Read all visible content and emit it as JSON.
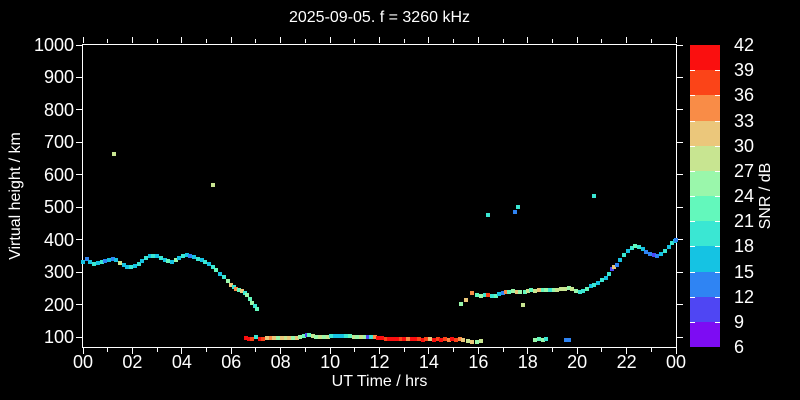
{
  "chart_data": {
    "type": "scatter",
    "title": "2025-09-05. f = 3260 kHz",
    "xlabel": "UT Time / hrs",
    "ylabel": "Virtual height / km",
    "xlim_hrs": [
      0,
      24
    ],
    "ylim_km": [
      70,
      1000
    ],
    "x_major_ticks_hrs": [
      0,
      2,
      4,
      6,
      8,
      10,
      12,
      14,
      16,
      18,
      20,
      22,
      24
    ],
    "x_tick_labels": [
      "00",
      "02",
      "04",
      "06",
      "08",
      "10",
      "12",
      "14",
      "16",
      "18",
      "20",
      "22",
      "00"
    ],
    "x_minor_ticks_hrs": [
      1,
      3,
      5,
      7,
      9,
      11,
      13,
      15,
      17,
      19,
      21,
      23
    ],
    "y_major_ticks_km": [
      100,
      200,
      300,
      400,
      500,
      600,
      700,
      800,
      900,
      1000
    ],
    "grid": false,
    "background_color": "#000000",
    "axis_color": "#ffffff",
    "colorbar": {
      "label": "SNR / dB",
      "tick_labels": [
        "42",
        "39",
        "36",
        "33",
        "30",
        "27",
        "24",
        "21",
        "18",
        "15",
        "12",
        "9",
        "6"
      ],
      "cells_top_to_bottom": [
        "#fa0f0f",
        "#fb4418",
        "#f98c47",
        "#ebc77b",
        "#c8e591",
        "#9af7ab",
        "#63f8bc",
        "#3ae7d3",
        "#15c3e3",
        "#2f84f3",
        "#4f46f3",
        "#7d0cf3"
      ],
      "cell_ranges_dB": [
        "39-42",
        "36-39",
        "33-36",
        "30-33",
        "27-30",
        "24-27",
        "21-24",
        "18-21",
        "15-18",
        "12-15",
        "9-12",
        "6-9"
      ]
    },
    "snr_color_by_band_dB": {
      "39": "#fa0f0f",
      "36": "#fb4418",
      "33": "#f98c47",
      "30": "#ebc77b",
      "27": "#c8e591",
      "24": "#9af7ab",
      "21": "#63f8bc",
      "18": "#3ae7d3",
      "15": "#15c3e3",
      "12": "#2f84f3",
      "9": "#4f46f3",
      "6": "#7d0cf3"
    },
    "points_time_height_snr": [
      [
        0.0,
        332,
        15
      ],
      [
        0.15,
        340,
        12
      ],
      [
        0.3,
        331,
        15
      ],
      [
        0.45,
        327,
        18
      ],
      [
        0.6,
        329,
        15
      ],
      [
        0.75,
        331,
        18
      ],
      [
        0.9,
        334,
        12
      ],
      [
        1.05,
        338,
        15
      ],
      [
        1.2,
        341,
        12
      ],
      [
        1.35,
        337,
        15
      ],
      [
        1.5,
        330,
        27
      ],
      [
        1.65,
        322,
        15
      ],
      [
        1.8,
        317,
        15
      ],
      [
        1.95,
        315,
        18
      ],
      [
        2.1,
        319,
        15
      ],
      [
        2.25,
        326,
        18
      ],
      [
        2.4,
        334,
        15
      ],
      [
        2.55,
        343,
        18
      ],
      [
        2.7,
        349,
        15
      ],
      [
        2.85,
        351,
        18
      ],
      [
        3.0,
        349,
        15
      ],
      [
        3.15,
        344,
        18
      ],
      [
        3.3,
        339,
        15
      ],
      [
        3.45,
        335,
        21
      ],
      [
        3.6,
        331,
        15
      ],
      [
        3.75,
        337,
        24
      ],
      [
        3.9,
        344,
        15
      ],
      [
        4.05,
        350,
        18
      ],
      [
        4.2,
        353,
        15
      ],
      [
        4.35,
        351,
        12
      ],
      [
        4.5,
        346,
        15
      ],
      [
        4.65,
        341,
        18
      ],
      [
        4.8,
        338,
        15
      ],
      [
        1.25,
        665,
        27
      ],
      [
        5.25,
        570,
        27
      ],
      [
        4.95,
        333,
        18
      ],
      [
        5.1,
        326,
        15
      ],
      [
        5.25,
        316,
        18
      ],
      [
        5.4,
        306,
        21
      ],
      [
        5.55,
        296,
        15
      ],
      [
        5.7,
        285,
        18
      ],
      [
        5.85,
        273,
        24
      ],
      [
        6.0,
        262,
        30
      ],
      [
        6.1,
        255,
        18
      ],
      [
        6.2,
        250,
        33
      ],
      [
        6.3,
        247,
        21
      ],
      [
        6.45,
        241,
        30
      ],
      [
        6.55,
        236,
        18
      ],
      [
        6.65,
        229,
        24
      ],
      [
        6.75,
        218,
        21
      ],
      [
        6.85,
        207,
        24
      ],
      [
        6.95,
        196,
        18
      ],
      [
        7.05,
        186,
        21
      ],
      [
        6.6,
        97,
        39
      ],
      [
        6.72,
        94,
        39
      ],
      [
        6.85,
        96,
        36
      ],
      [
        7.0,
        102,
        18
      ],
      [
        7.15,
        95,
        39
      ],
      [
        7.3,
        96,
        36
      ],
      [
        7.45,
        98,
        30
      ],
      [
        7.6,
        97,
        33
      ],
      [
        7.75,
        99,
        30
      ],
      [
        7.9,
        97,
        24
      ],
      [
        8.05,
        98,
        30
      ],
      [
        8.2,
        99,
        27
      ],
      [
        8.35,
        98,
        30
      ],
      [
        8.5,
        97,
        24
      ],
      [
        8.65,
        99,
        30
      ],
      [
        8.8,
        101,
        24
      ],
      [
        8.95,
        105,
        21
      ],
      [
        9.05,
        108,
        9
      ],
      [
        9.15,
        106,
        21
      ],
      [
        9.3,
        103,
        27
      ],
      [
        9.45,
        102,
        24
      ],
      [
        9.6,
        102,
        27
      ],
      [
        9.75,
        102,
        24
      ],
      [
        9.9,
        102,
        27
      ],
      [
        10.05,
        103,
        18
      ],
      [
        10.2,
        103,
        15
      ],
      [
        10.35,
        103,
        15
      ],
      [
        10.5,
        103,
        15
      ],
      [
        10.65,
        103,
        18
      ],
      [
        10.8,
        103,
        21
      ],
      [
        10.95,
        102,
        27
      ],
      [
        11.1,
        102,
        24
      ],
      [
        11.25,
        102,
        27
      ],
      [
        11.4,
        102,
        24
      ],
      [
        11.55,
        101,
        9
      ],
      [
        11.67,
        102,
        18
      ],
      [
        11.8,
        100,
        33
      ],
      [
        11.95,
        98,
        39
      ],
      [
        12.1,
        97,
        39
      ],
      [
        12.25,
        96,
        36
      ],
      [
        12.4,
        95,
        39
      ],
      [
        12.55,
        96,
        39
      ],
      [
        12.7,
        95,
        39
      ],
      [
        12.85,
        96,
        36
      ],
      [
        13.0,
        94,
        39
      ],
      [
        13.15,
        95,
        33
      ],
      [
        13.3,
        94,
        39
      ],
      [
        13.45,
        95,
        39
      ],
      [
        13.6,
        94,
        36
      ],
      [
        13.75,
        93,
        39
      ],
      [
        13.9,
        94,
        36
      ],
      [
        14.05,
        94,
        30
      ],
      [
        14.2,
        93,
        39
      ],
      [
        14.35,
        94,
        36
      ],
      [
        14.5,
        93,
        39
      ],
      [
        14.65,
        94,
        36
      ],
      [
        14.8,
        93,
        33
      ],
      [
        14.95,
        94,
        39
      ],
      [
        15.1,
        93,
        36
      ],
      [
        15.25,
        94,
        33
      ],
      [
        15.38,
        93,
        30
      ],
      [
        15.6,
        88,
        27
      ],
      [
        15.75,
        86,
        30
      ],
      [
        15.95,
        86,
        24
      ],
      [
        16.1,
        88,
        27
      ],
      [
        18.3,
        92,
        24
      ],
      [
        18.45,
        94,
        21
      ],
      [
        18.6,
        92,
        24
      ],
      [
        18.75,
        94,
        18
      ],
      [
        19.55,
        92,
        12
      ],
      [
        19.68,
        92,
        12
      ],
      [
        15.3,
        202,
        24
      ],
      [
        15.5,
        214,
        30
      ],
      [
        15.75,
        237,
        33
      ],
      [
        15.95,
        230,
        21
      ],
      [
        16.1,
        227,
        24
      ],
      [
        16.25,
        231,
        18
      ],
      [
        16.4,
        229,
        36
      ],
      [
        16.55,
        226,
        18
      ],
      [
        16.7,
        228,
        21
      ],
      [
        16.85,
        232,
        15
      ],
      [
        17.0,
        235,
        12
      ],
      [
        17.1,
        238,
        33
      ],
      [
        17.25,
        240,
        21
      ],
      [
        17.4,
        242,
        24
      ],
      [
        17.55,
        240,
        30
      ],
      [
        17.7,
        238,
        24
      ],
      [
        17.8,
        200,
        27
      ],
      [
        17.88,
        240,
        21
      ],
      [
        18.0,
        242,
        27
      ],
      [
        18.15,
        244,
        21
      ],
      [
        18.3,
        243,
        27
      ],
      [
        18.45,
        245,
        30
      ],
      [
        18.6,
        244,
        21
      ],
      [
        18.75,
        246,
        24
      ],
      [
        18.9,
        245,
        18
      ],
      [
        19.05,
        247,
        24
      ],
      [
        19.2,
        246,
        27
      ],
      [
        19.35,
        248,
        27
      ],
      [
        19.5,
        250,
        27
      ],
      [
        19.65,
        252,
        24
      ],
      [
        19.8,
        248,
        27
      ],
      [
        19.95,
        242,
        24
      ],
      [
        20.1,
        238,
        18
      ],
      [
        20.25,
        243,
        18
      ],
      [
        20.4,
        250,
        21
      ],
      [
        20.55,
        257,
        15
      ],
      [
        20.7,
        262,
        18
      ],
      [
        20.85,
        268,
        15
      ],
      [
        21.0,
        275,
        18
      ],
      [
        21.15,
        283,
        15
      ],
      [
        21.3,
        295,
        18
      ],
      [
        21.42,
        309,
        9
      ],
      [
        21.5,
        315,
        30
      ],
      [
        21.62,
        324,
        12
      ],
      [
        21.75,
        339,
        15
      ],
      [
        21.9,
        354,
        18
      ],
      [
        22.05,
        367,
        15
      ],
      [
        22.2,
        375,
        18
      ],
      [
        22.35,
        381,
        21
      ],
      [
        22.5,
        378,
        18
      ],
      [
        22.65,
        372,
        15
      ],
      [
        22.8,
        363,
        12
      ],
      [
        22.95,
        356,
        12
      ],
      [
        23.1,
        352,
        9
      ],
      [
        23.25,
        351,
        12
      ],
      [
        23.4,
        356,
        15
      ],
      [
        23.55,
        366,
        18
      ],
      [
        23.7,
        379,
        15
      ],
      [
        23.85,
        390,
        18
      ],
      [
        23.95,
        396,
        15
      ],
      [
        24.0,
        398,
        12
      ],
      [
        16.4,
        478,
        18
      ],
      [
        17.5,
        487,
        12
      ],
      [
        17.62,
        500,
        18
      ],
      [
        20.7,
        535,
        18
      ]
    ]
  }
}
